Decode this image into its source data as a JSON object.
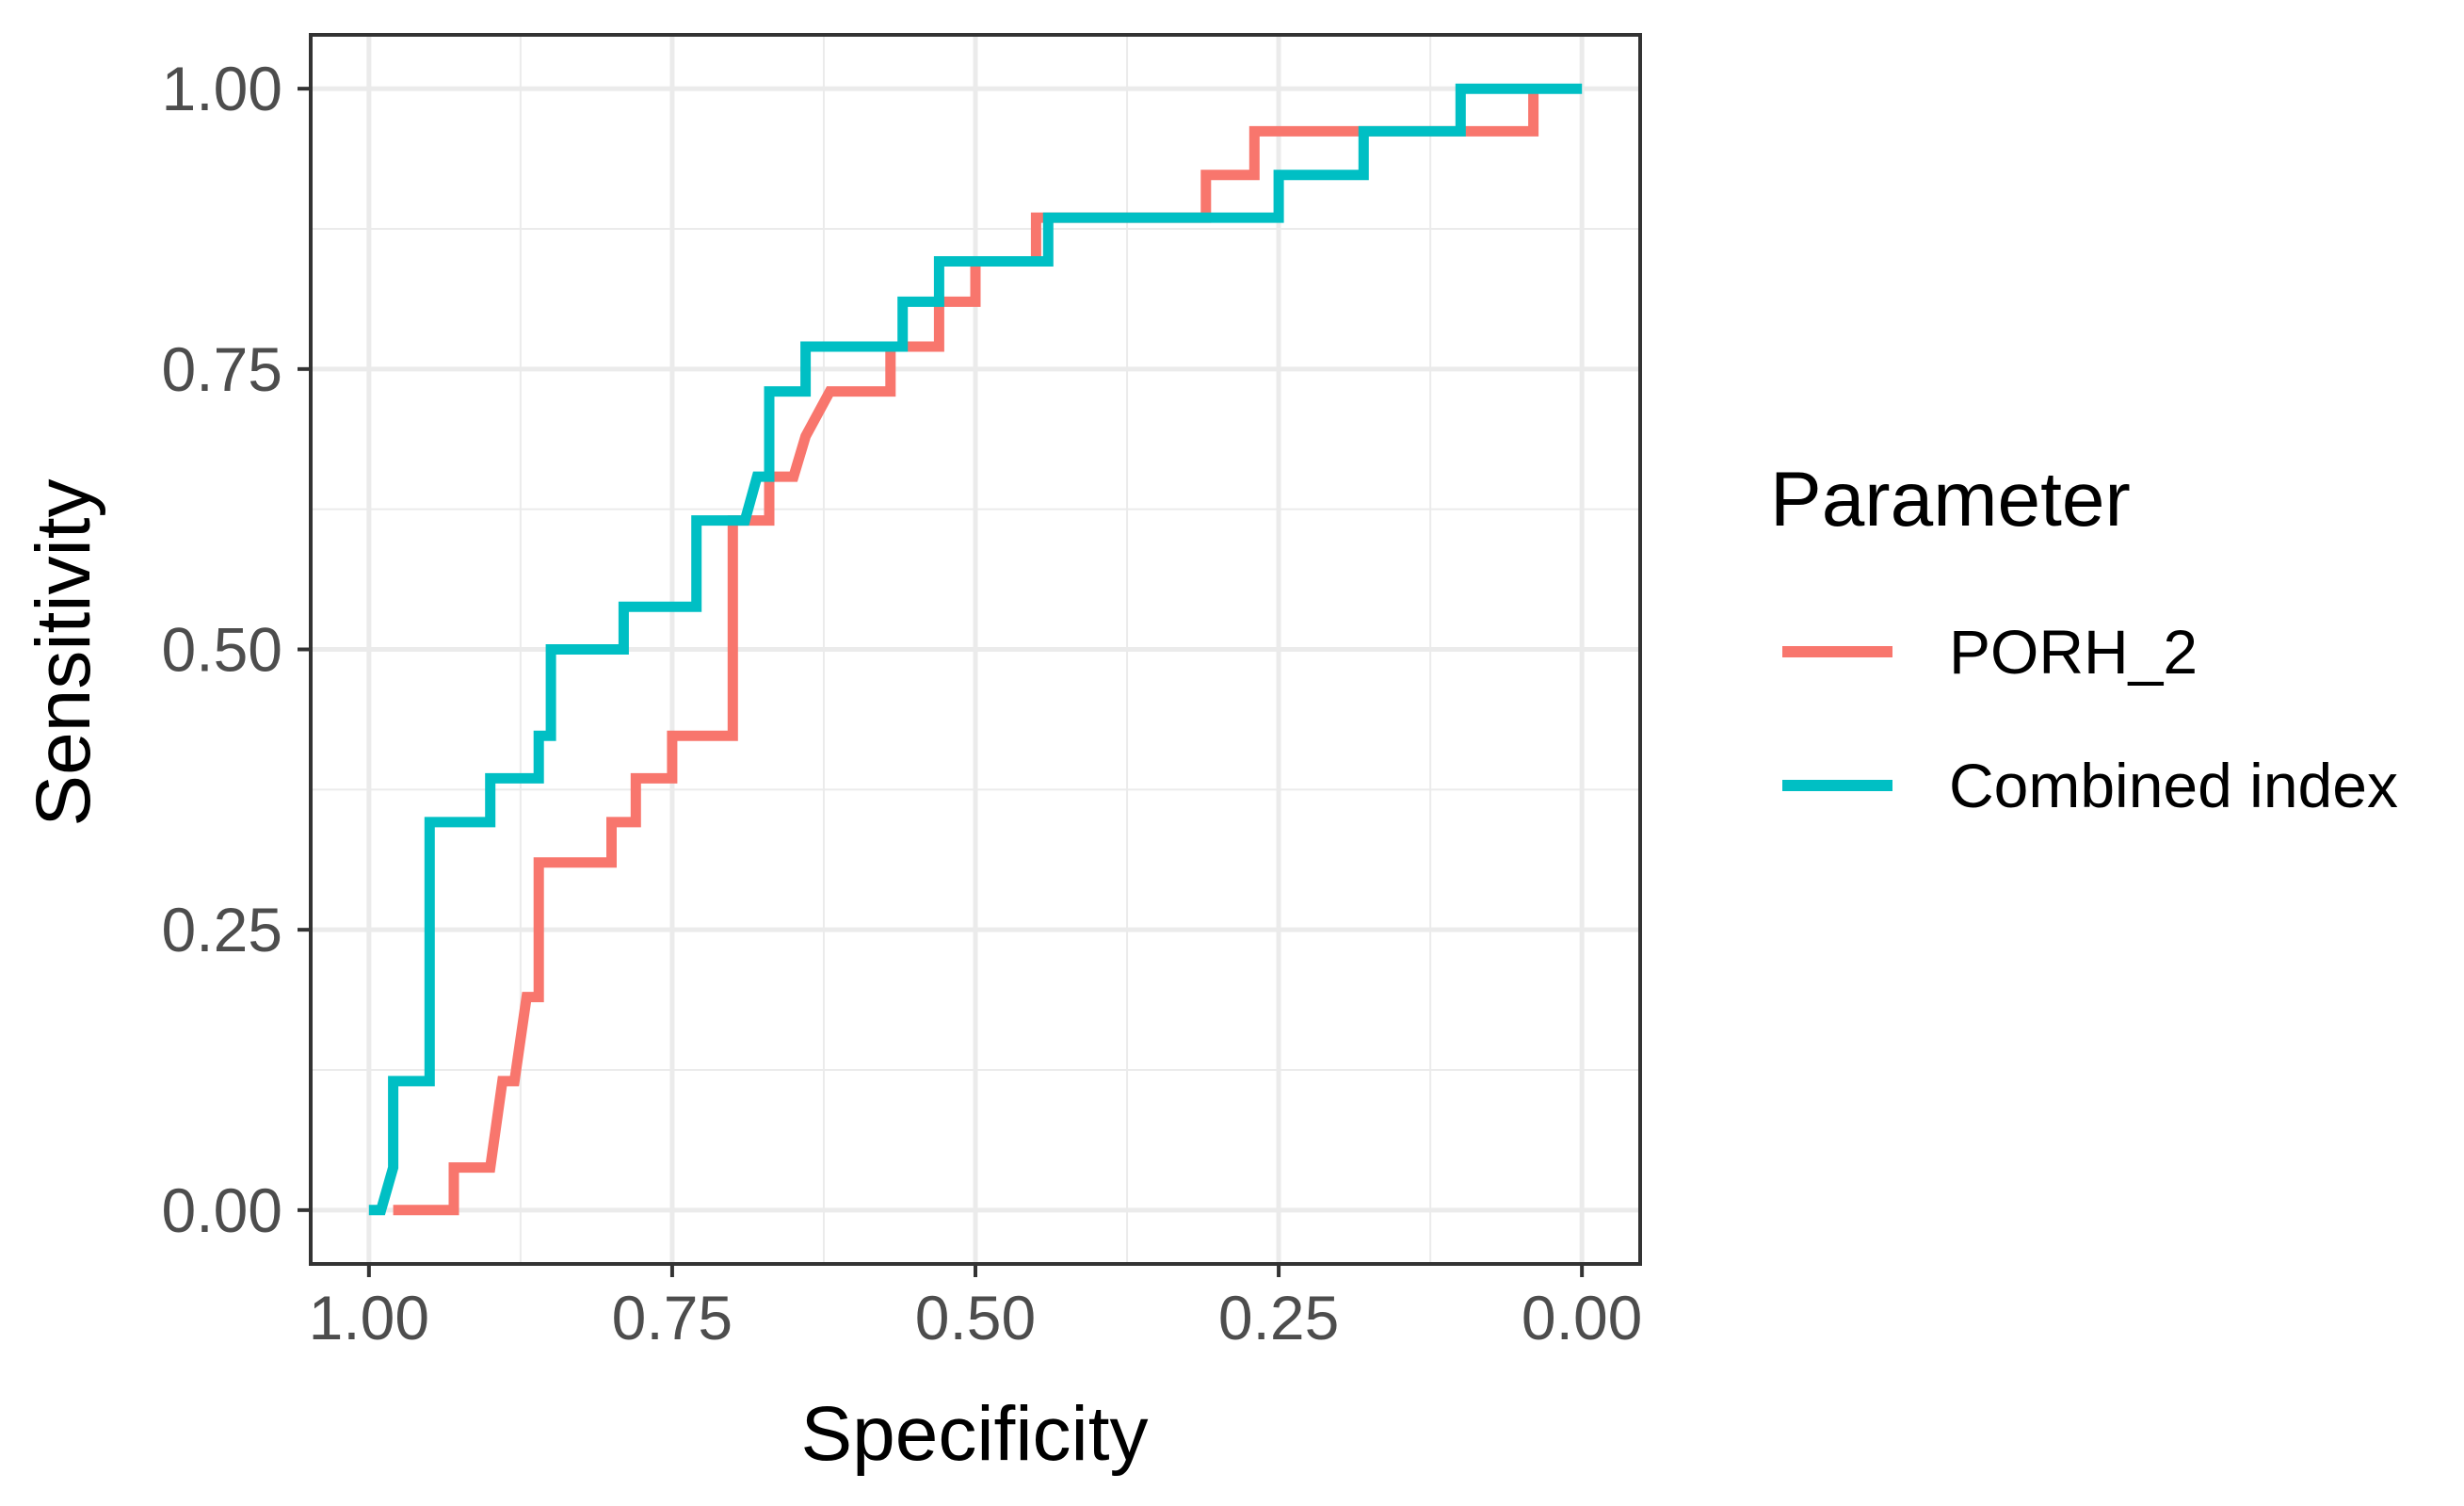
{
  "chart_data": {
    "type": "line",
    "title": "",
    "xlabel": "Specificity",
    "ylabel": "Sensitivity",
    "xlim": [
      1.0,
      0.0
    ],
    "ylim": [
      0.0,
      1.0
    ],
    "x_reversed": true,
    "x_ticks": [
      "1.00",
      "0.75",
      "0.50",
      "0.25",
      "0.00"
    ],
    "x_tick_values": [
      1.0,
      0.75,
      0.5,
      0.25,
      0.0
    ],
    "y_ticks": [
      "0.00",
      "0.25",
      "0.50",
      "0.75",
      "1.00"
    ],
    "y_tick_values": [
      0.0,
      0.25,
      0.5,
      0.75,
      1.0
    ],
    "grid": true,
    "legend": {
      "title": "Parameter",
      "position": "right"
    },
    "series": [
      {
        "name": "PORH_2",
        "color": "#F8766D",
        "specificity": [
          0.98,
          0.93,
          0.93,
          0.9,
          0.89,
          0.88,
          0.87,
          0.86,
          0.86,
          0.8,
          0.8,
          0.78,
          0.78,
          0.75,
          0.75,
          0.7,
          0.7,
          0.67,
          0.67,
          0.65,
          0.64,
          0.62,
          0.57,
          0.57,
          0.53,
          0.53,
          0.5,
          0.5,
          0.45,
          0.45,
          0.31,
          0.31,
          0.27,
          0.27,
          0.1,
          0.1,
          0.04,
          0.04
        ],
        "sensitivity": [
          0.0,
          0.0,
          0.038,
          0.038,
          0.115,
          0.115,
          0.19,
          0.19,
          0.31,
          0.31,
          0.346,
          0.346,
          0.385,
          0.385,
          0.423,
          0.423,
          0.615,
          0.615,
          0.654,
          0.654,
          0.69,
          0.73,
          0.73,
          0.77,
          0.77,
          0.81,
          0.81,
          0.846,
          0.846,
          0.885,
          0.885,
          0.923,
          0.923,
          0.962,
          0.962,
          0.962,
          0.962,
          1.0
        ]
      },
      {
        "name": "Combined index",
        "color": "#00BFC4",
        "specificity": [
          1.0,
          0.99,
          0.98,
          0.98,
          0.95,
          0.95,
          0.9,
          0.9,
          0.86,
          0.86,
          0.85,
          0.85,
          0.79,
          0.79,
          0.73,
          0.73,
          0.69,
          0.68,
          0.67,
          0.67,
          0.64,
          0.64,
          0.56,
          0.56,
          0.53,
          0.53,
          0.44,
          0.44,
          0.25,
          0.25,
          0.18,
          0.18,
          0.1,
          0.1,
          0.0
        ],
        "sensitivity": [
          0.0,
          0.0,
          0.038,
          0.115,
          0.115,
          0.346,
          0.346,
          0.385,
          0.385,
          0.423,
          0.423,
          0.5,
          0.5,
          0.538,
          0.538,
          0.615,
          0.615,
          0.654,
          0.654,
          0.73,
          0.73,
          0.77,
          0.77,
          0.81,
          0.81,
          0.846,
          0.846,
          0.885,
          0.885,
          0.923,
          0.923,
          0.962,
          0.962,
          1.0,
          1.0
        ]
      }
    ]
  }
}
